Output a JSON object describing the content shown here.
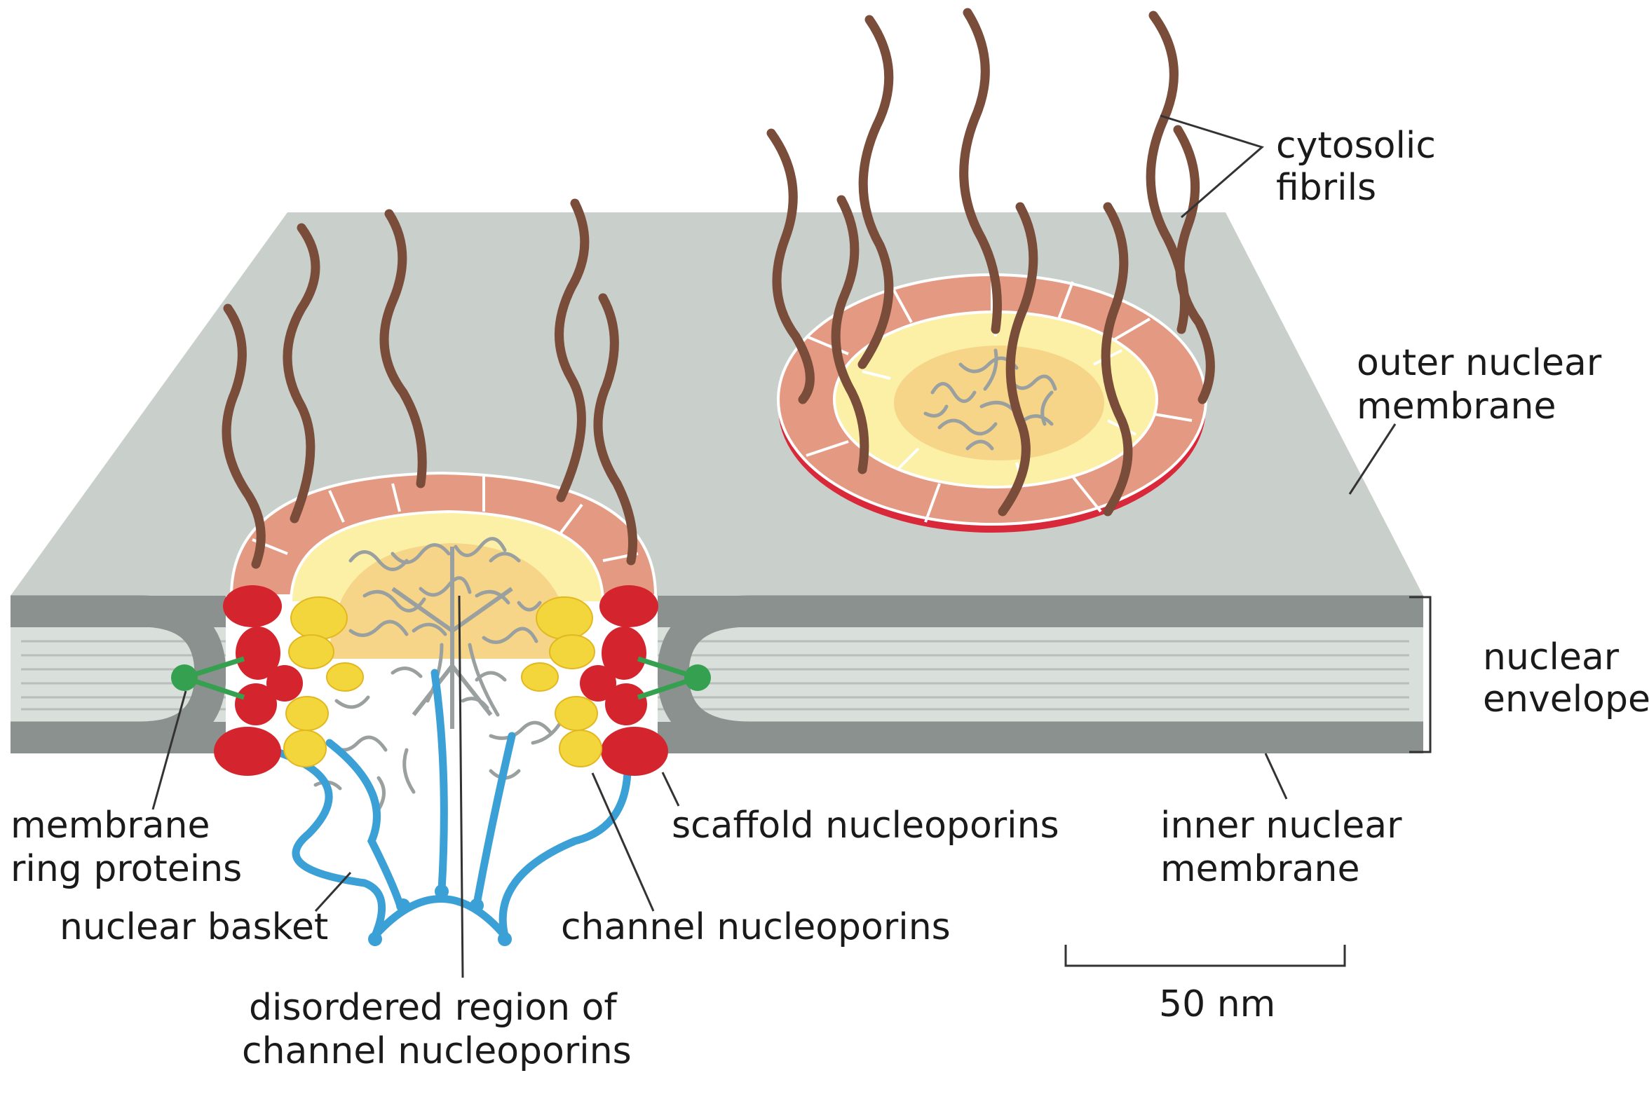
{
  "labels": {
    "cytosolic_fibrils": [
      "cytosolic",
      "fibrils"
    ],
    "outer_nuclear_membrane": [
      "outer nuclear",
      "membrane"
    ],
    "nuclear_envelope": [
      "nuclear",
      "envelope"
    ],
    "inner_nuclear_membrane": [
      "inner nuclear",
      "membrane"
    ],
    "membrane_ring_proteins": [
      "membrane",
      "ring proteins"
    ],
    "scaffold_nucleoporins": "scaffold nucleoporins",
    "nuclear_basket": "nuclear basket",
    "channel_nucleoporins": "channel nucleoporins",
    "disordered_region": [
      "disordered region of",
      "channel nucleoporins"
    ],
    "scale_bar": "50 nm"
  },
  "colors": {
    "membrane_top": "#c9cfcb",
    "membrane_edge": "#8b918e",
    "lumen": "#d9dfdb",
    "fibril": "#7a4c3a",
    "ring_outer": "#e49a82",
    "ring_outer_edge": "#d8283a",
    "ring_inner": "#fbf0a6",
    "channel_core": "#f6d588",
    "disordered": "#9aa0a0",
    "scaffold": "#d4252f",
    "channel": "#f3d53c",
    "membrane_ring": "#35a150",
    "basket": "#3aa0d6"
  }
}
